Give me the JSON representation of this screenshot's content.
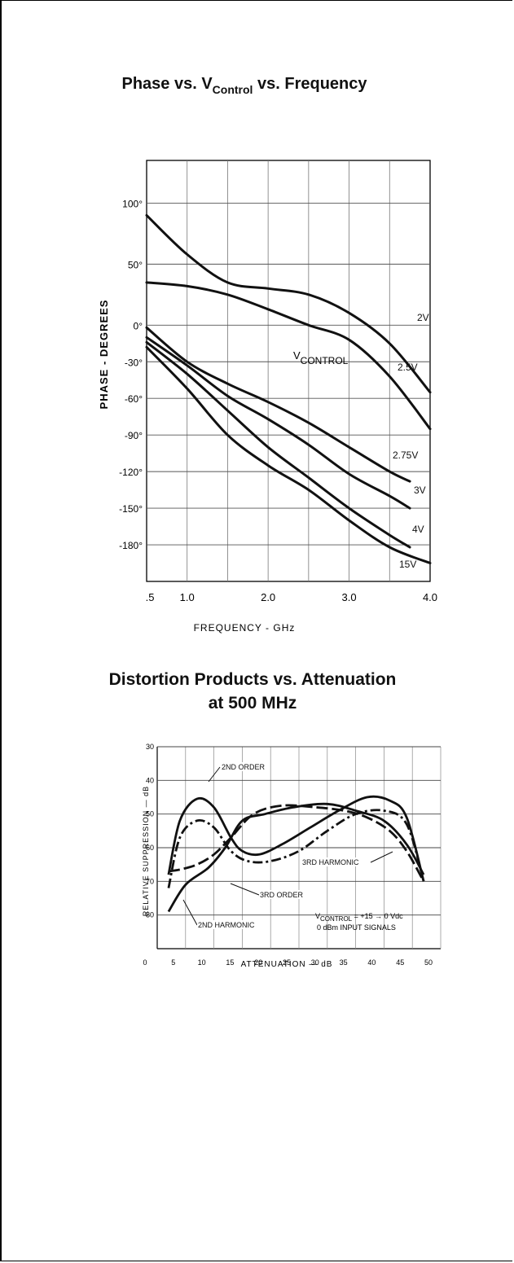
{
  "chart_data": [
    {
      "type": "line",
      "title": "Phase vs. VControl vs. Frequency",
      "title_main": "Phase vs. V",
      "title_sub": "Control",
      "title_tail": " vs. Frequency",
      "xlabel": "FREQUENCY - GHz",
      "ylabel": "PHASE - DEGREES",
      "xlim": [
        0.5,
        4.0
      ],
      "ylim": [
        -210,
        135
      ],
      "grid": true,
      "x_ticks": [
        0.5,
        1.0,
        1.5,
        2.0,
        2.5,
        3.0,
        3.5,
        4.0
      ],
      "x_tick_labels": [
        {
          "value": 0.5,
          "label": ".5"
        },
        {
          "value": 1.0,
          "label": "1.0"
        },
        {
          "value": 2.0,
          "label": "2.0"
        },
        {
          "value": 3.0,
          "label": "3.0"
        },
        {
          "value": 4.0,
          "label": "4.0"
        }
      ],
      "y_ticks": [
        100,
        50,
        0,
        -30,
        -60,
        -90,
        -120,
        -150,
        -180
      ],
      "y_tick_labels": [
        "100°",
        "50°",
        "0°",
        "-30°",
        "-60°",
        "-90°",
        "-120°",
        "-150°",
        "-180°"
      ],
      "annotation_main": "V",
      "annotation_sub": "CONTROL",
      "series": [
        {
          "name": "2V",
          "x": [
            0.5,
            1.0,
            1.5,
            2.0,
            2.5,
            3.0,
            3.5,
            4.0
          ],
          "y": [
            90,
            58,
            35,
            30,
            25,
            10,
            -15,
            -55
          ]
        },
        {
          "name": "2.5V",
          "x": [
            0.5,
            1.0,
            1.5,
            2.0,
            2.5,
            3.0,
            3.5,
            4.0
          ],
          "y": [
            35,
            32,
            25,
            13,
            0,
            -12,
            -42,
            -85
          ]
        },
        {
          "name": "2.75V",
          "x": [
            0.5,
            1.0,
            1.5,
            2.0,
            2.5,
            3.0,
            3.5,
            3.75
          ],
          "y": [
            -2,
            -30,
            -48,
            -63,
            -80,
            -100,
            -120,
            -128
          ]
        },
        {
          "name": "3V",
          "x": [
            0.5,
            1.0,
            1.5,
            2.0,
            2.5,
            3.0,
            3.5,
            3.75
          ],
          "y": [
            -10,
            -33,
            -58,
            -77,
            -98,
            -122,
            -140,
            -150
          ]
        },
        {
          "name": "4V",
          "x": [
            0.5,
            1.0,
            1.5,
            2.0,
            2.5,
            3.0,
            3.5,
            3.75
          ],
          "y": [
            -14,
            -40,
            -70,
            -100,
            -125,
            -150,
            -172,
            -182
          ]
        },
        {
          "name": "15V",
          "x": [
            0.5,
            1.0,
            1.5,
            2.0,
            2.5,
            3.0,
            3.5,
            4.0
          ],
          "y": [
            -18,
            -52,
            -90,
            -115,
            -135,
            -160,
            -182,
            -195
          ]
        }
      ]
    },
    {
      "type": "line",
      "title": "Distortion Products vs. Attenuation at 500 MHz",
      "title_line1": "Distortion Products vs. Attenuation",
      "title_line2": "at 500 MHz",
      "xlabel": "ATTENUATION — dB",
      "ylabel": "RELATIVE SUPPRESSION — dB",
      "xlim": [
        0,
        50
      ],
      "ylim": [
        30,
        90
      ],
      "y_inverted": true,
      "grid": true,
      "x_ticks": [
        0,
        5,
        10,
        15,
        20,
        25,
        30,
        35,
        40,
        45,
        50
      ],
      "x_tick_labels": [
        "0",
        "5",
        "10",
        "15",
        "20",
        "25",
        "30",
        "35",
        "40",
        "45",
        "50"
      ],
      "y_ticks": [
        30,
        40,
        50,
        60,
        70,
        80
      ],
      "y_tick_labels": [
        "30",
        "40",
        "50",
        "60",
        "70",
        "80"
      ],
      "annotations": {
        "vcontrol_main": "V",
        "vcontrol_sub": "CONTROL",
        "vcontrol_tail": " = +15 → 0 Vdc",
        "input_signals": "0 dBm INPUT SIGNALS"
      },
      "series": [
        {
          "name": "2ND ORDER",
          "style": "solid",
          "x": [
            2,
            4,
            7,
            10,
            13,
            15,
            18,
            22,
            27,
            32,
            37,
            41,
            44,
            47
          ],
          "y": [
            68,
            52,
            45.5,
            48,
            57,
            61,
            62,
            59,
            54,
            49,
            45,
            46,
            51,
            70
          ]
        },
        {
          "name": "3RD ORDER",
          "style": "dash-dot",
          "x": [
            2,
            4,
            7,
            10,
            13,
            16,
            20,
            25,
            30,
            35,
            40,
            44,
            47
          ],
          "y": [
            72,
            57,
            52,
            54,
            61,
            64,
            64,
            61,
            55,
            50,
            49,
            53,
            70
          ]
        },
        {
          "name": "2ND HARMONIC",
          "style": "solid",
          "x": [
            2,
            5,
            9,
            12,
            15,
            19,
            24,
            30,
            35,
            40,
            44,
            47
          ],
          "y": [
            79,
            71,
            66,
            60,
            52,
            50,
            48,
            47,
            49,
            52,
            59,
            68
          ]
        },
        {
          "name": "3RD HARMONIC",
          "style": "long-dash",
          "x": [
            2,
            4,
            7,
            10,
            13,
            17,
            22,
            28,
            33,
            37,
            41,
            44,
            47
          ],
          "y": [
            67,
            66.5,
            65,
            62,
            57,
            50,
            47.5,
            48,
            49,
            51,
            55,
            61,
            70
          ]
        }
      ],
      "curve_labels": [
        "2ND ORDER",
        "3RD ORDER",
        "2ND HARMONIC",
        "3RD HARMONIC"
      ]
    }
  ]
}
